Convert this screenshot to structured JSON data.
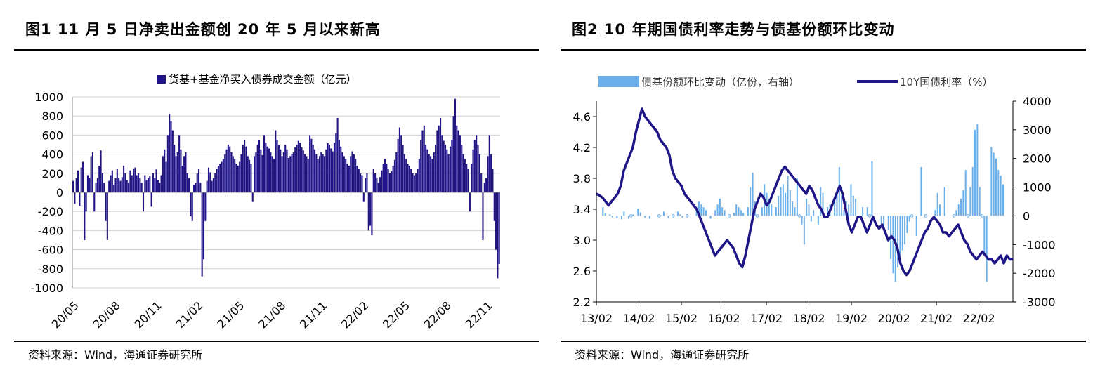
{
  "panels": [
    {
      "title": "图1   11 月 5 日净卖出金额创 20 年 5 月以来新高",
      "source": "资料来源：Wind，海通证券研究所"
    },
    {
      "title": "图2   10 年期国债利率走势与债基份额环比变动",
      "source": "资料来源：Wind，海通证券研究所"
    }
  ],
  "chart_data": [
    {
      "type": "bar",
      "legend": "货基+基金净买入债券成交金额（亿元）",
      "bar_color": "#211586",
      "ylim": [
        -1000,
        1000
      ],
      "yticks": [
        1000,
        800,
        600,
        400,
        200,
        0,
        -200,
        -400,
        -600,
        -800,
        -1000
      ],
      "xticks": [
        "20/05",
        "20/08",
        "20/11",
        "21/02",
        "21/05",
        "21/08",
        "21/11",
        "22/02",
        "22/05",
        "22/08",
        "22/11"
      ],
      "x_range": [
        "2020/05",
        "2022/11"
      ],
      "grid": true,
      "legend_position": "top",
      "series": [
        {
          "values": [
            120,
            -120,
            150,
            230,
            -140,
            260,
            320,
            -500,
            -200,
            180,
            150,
            380,
            420,
            -200,
            100,
            150,
            280,
            440,
            200,
            100,
            -300,
            -500,
            120,
            180,
            230,
            80,
            150,
            250,
            150,
            120,
            160,
            280,
            200,
            130,
            100,
            230,
            180,
            250,
            260,
            180,
            200,
            150,
            100,
            -200,
            180,
            130,
            150,
            170,
            -150,
            200,
            150,
            240,
            130,
            100,
            180,
            380,
            450,
            320,
            600,
            820,
            750,
            650,
            500,
            380,
            420,
            600,
            450,
            280,
            380,
            420,
            200,
            150,
            -250,
            -300,
            80,
            100,
            200,
            250,
            100,
            -880,
            -700,
            -300,
            120,
            260,
            210,
            120,
            150,
            200,
            250,
            280,
            300,
            320,
            350,
            400,
            450,
            500,
            480,
            420,
            380,
            350,
            300,
            280,
            320,
            400,
            500,
            550,
            480,
            380,
            340,
            300,
            -100,
            380,
            420,
            500,
            550,
            450,
            390,
            600,
            520,
            480,
            460,
            420,
            380,
            350,
            650,
            550,
            500,
            450,
            380,
            420,
            500,
            450,
            360,
            380,
            400,
            420,
            470,
            500,
            540,
            520,
            470,
            440,
            400,
            380,
            350,
            600,
            560,
            500,
            450,
            400,
            350,
            380,
            420,
            400,
            380,
            450,
            520,
            500,
            460,
            430,
            520,
            620,
            780,
            550,
            480,
            420,
            380,
            350,
            300,
            280,
            380,
            430,
            400,
            350,
            280,
            250,
            200,
            180,
            -100,
            150,
            200,
            -400,
            -350,
            -450,
            250,
            200,
            150,
            100,
            160,
            230,
            300,
            350,
            300,
            250,
            200,
            220,
            280,
            340,
            420,
            560,
            680,
            600,
            500,
            400,
            350,
            300,
            280,
            250,
            200,
            180,
            200,
            250,
            350,
            550,
            650,
            700,
            500,
            450,
            400,
            380,
            350,
            420,
            500,
            650,
            700,
            780,
            600,
            540,
            500,
            450,
            400,
            480,
            550,
            800,
            980,
            700,
            650,
            600,
            500,
            400,
            350,
            300,
            250,
            -200,
            300,
            450,
            550,
            600,
            500,
            400,
            200,
            -500,
            100,
            150,
            380,
            600,
            400,
            250,
            -300,
            -600,
            -900,
            -750
          ]
        }
      ]
    },
    {
      "type": "bar+line",
      "grid": false,
      "legend_position": "top",
      "xticks": [
        "13/02",
        "14/02",
        "15/02",
        "16/02",
        "17/02",
        "18/02",
        "19/02",
        "20/02",
        "21/02",
        "22/02"
      ],
      "x_range": [
        "2013/02",
        "2022/11"
      ],
      "yleft": {
        "ticks": [
          "4.6",
          "4.2",
          "3.8",
          "3.4",
          "3.0",
          "2.6",
          "2.2"
        ],
        "ylim": [
          2.2,
          4.8
        ]
      },
      "yright": {
        "ticks": [
          "4000",
          "3000",
          "2000",
          "1000",
          "0",
          "-1000",
          "-2000",
          "-3000"
        ],
        "ylim": [
          -3000,
          4000
        ]
      },
      "series": [
        {
          "name": "债基份额环比变动（亿份，右轴）",
          "type": "bar",
          "axis": "right",
          "color": "#6aaeea",
          "values": [
            0,
            300,
            80,
            0,
            50,
            -50,
            0,
            -80,
            0,
            -120,
            150,
            0,
            -100,
            0,
            50,
            0,
            250,
            120,
            0,
            -60,
            0,
            -100,
            0,
            0,
            0,
            0,
            20,
            150,
            0,
            -80,
            0,
            0,
            0,
            150,
            50,
            -60,
            0,
            0,
            0,
            0,
            0,
            300,
            500,
            400,
            300,
            200,
            0,
            -100,
            0,
            200,
            400,
            600,
            300,
            200,
            0,
            0,
            0,
            100,
            400,
            300,
            200,
            100,
            0,
            300,
            1000,
            1500,
            500,
            0,
            0,
            300,
            1100,
            800,
            600,
            400,
            0,
            300,
            700,
            1000,
            1100,
            800,
            1400,
            900,
            500,
            300,
            1300,
            0,
            -300,
            -1000,
            600,
            400,
            -200,
            200,
            0,
            -300,
            1000,
            800,
            0,
            300,
            400,
            0,
            600,
            900,
            1700,
            1000,
            200,
            500,
            400,
            1100,
            700,
            600,
            0,
            0,
            300,
            0,
            300,
            0,
            1900,
            0,
            0,
            0,
            -300,
            -400,
            0,
            -500,
            -1500,
            -2000,
            -2300,
            -1800,
            -1400,
            -1200,
            -1000,
            -600,
            -200,
            0,
            0,
            -700,
            0,
            1700,
            0,
            0,
            0,
            0,
            0,
            200,
            800,
            400,
            0,
            1000,
            0,
            0,
            0,
            0,
            200,
            400,
            600,
            900,
            1600,
            0,
            1000,
            1700,
            3000,
            3200,
            1000,
            0,
            -1300,
            -2300,
            0,
            2400,
            2200,
            2000,
            1600,
            1400,
            1100,
            0,
            0
          ]
        },
        {
          "name": "10Y国债利率（%）",
          "type": "line",
          "axis": "left",
          "color": "#1e1587",
          "values": [
            3.6,
            3.58,
            3.55,
            3.5,
            3.45,
            3.5,
            3.55,
            3.6,
            3.7,
            3.9,
            4.0,
            4.1,
            4.2,
            4.4,
            4.55,
            4.7,
            4.6,
            4.55,
            4.5,
            4.45,
            4.4,
            4.3,
            4.25,
            4.2,
            4.1,
            3.9,
            3.8,
            3.75,
            3.7,
            3.6,
            3.55,
            3.5,
            3.45,
            3.4,
            3.3,
            3.2,
            3.1,
            3.0,
            2.9,
            2.8,
            2.85,
            2.9,
            2.95,
            3.0,
            2.95,
            2.9,
            2.8,
            2.7,
            2.65,
            2.8,
            3.0,
            3.2,
            3.4,
            3.5,
            3.6,
            3.55,
            3.45,
            3.5,
            3.6,
            3.7,
            3.8,
            3.9,
            3.95,
            3.9,
            3.85,
            3.8,
            3.75,
            3.7,
            3.65,
            3.6,
            3.7,
            3.65,
            3.55,
            3.45,
            3.4,
            3.3,
            3.3,
            3.4,
            3.5,
            3.6,
            3.7,
            3.6,
            3.4,
            3.2,
            3.1,
            3.2,
            3.3,
            3.3,
            3.2,
            3.1,
            3.2,
            3.3,
            3.2,
            3.15,
            3.2,
            3.1,
            3.0,
            3.05,
            3.0,
            2.9,
            2.7,
            2.6,
            2.55,
            2.6,
            2.7,
            2.8,
            2.9,
            3.0,
            3.1,
            3.15,
            3.25,
            3.3,
            3.25,
            3.2,
            3.1,
            3.1,
            3.05,
            3.1,
            3.15,
            3.2,
            3.1,
            3.0,
            2.95,
            2.85,
            2.8,
            2.75,
            2.8,
            2.85,
            2.8,
            2.75,
            2.75,
            2.7,
            2.75,
            2.8,
            2.7,
            2.8,
            2.75,
            2.75
          ]
        }
      ]
    }
  ]
}
